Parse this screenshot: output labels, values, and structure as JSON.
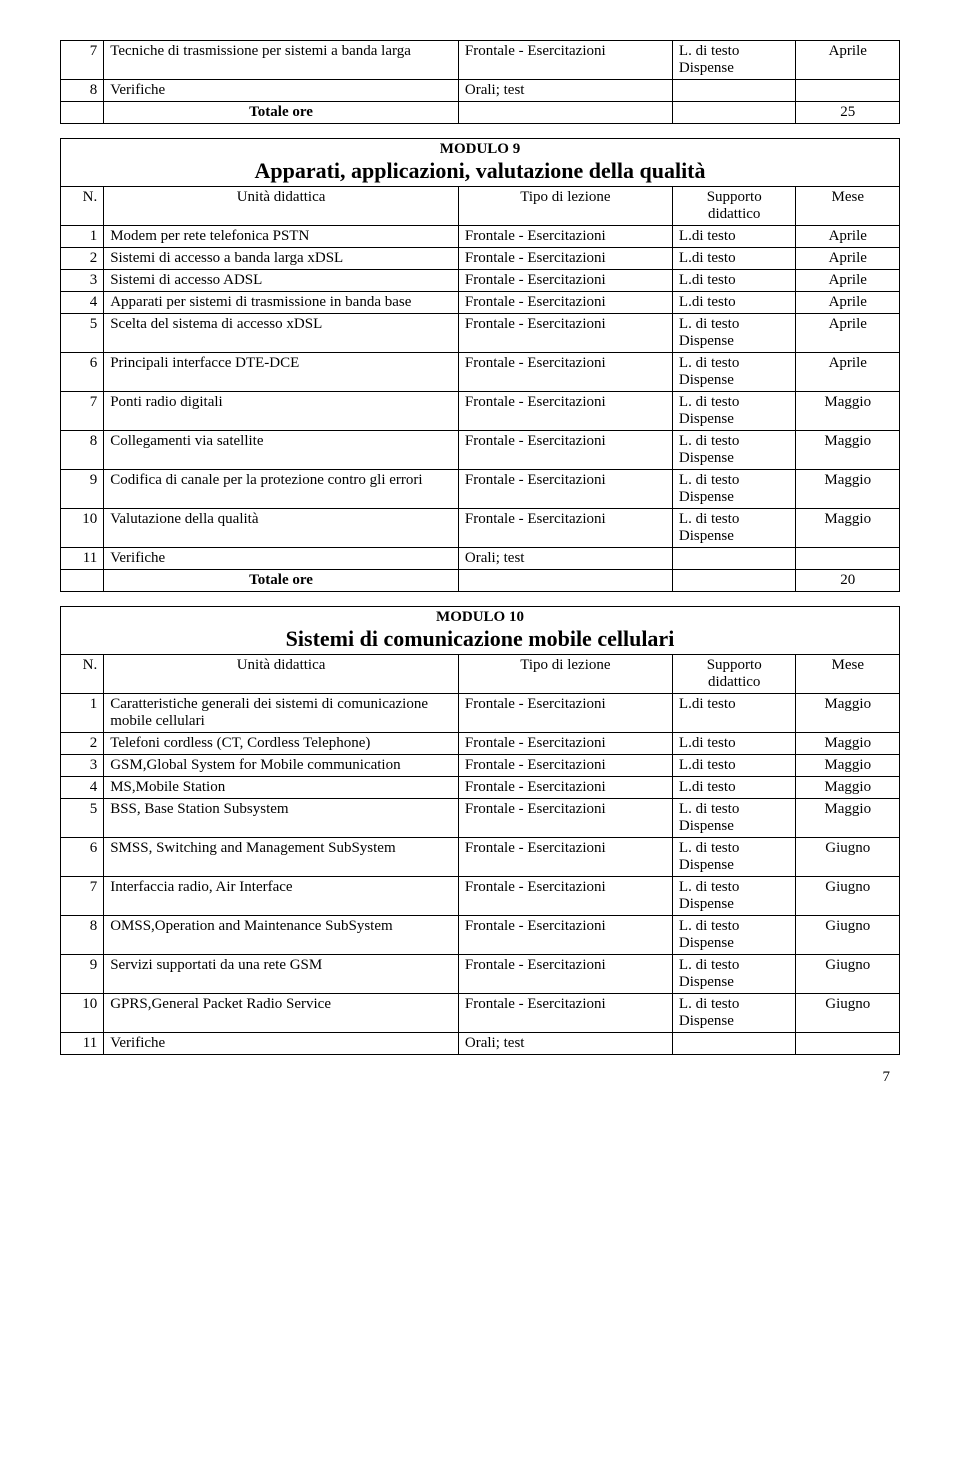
{
  "colors": {
    "background": "#ffffff",
    "text": "#000000",
    "border": "#000000"
  },
  "typography": {
    "font_family": "Times New Roman",
    "base_size_pt": 12,
    "subtitle_size_pt": 17
  },
  "page_number": "7",
  "labels": {
    "n": "N.",
    "unita": "Unità didattica",
    "tipo": "Tipo di lezione",
    "supporto": "Supporto didattico",
    "mese": "Mese",
    "totale": "Totale ore"
  },
  "top_table": {
    "rows": [
      {
        "n": "7",
        "unit": "Tecniche di trasmissione per sistemi a banda larga",
        "tipo": "Frontale - Esercitazioni",
        "supp": "L. di testo Dispense",
        "mese": "Aprile"
      },
      {
        "n": "8",
        "unit": "Verifiche",
        "tipo": "Orali; test",
        "supp": "",
        "mese": ""
      }
    ],
    "total_value": "25"
  },
  "module9": {
    "code": "MODULO 9",
    "title": "Apparati, applicazioni, valutazione della qualità",
    "rows": [
      {
        "n": "1",
        "unit": "Modem per rete telefonica PSTN",
        "tipo": "Frontale - Esercitazioni",
        "supp": "L.di testo",
        "mese": "Aprile"
      },
      {
        "n": "2",
        "unit": "Sistemi di accesso a banda larga xDSL",
        "tipo": "Frontale - Esercitazioni",
        "supp": "L.di testo",
        "mese": "Aprile"
      },
      {
        "n": "3",
        "unit": "Sistemi di accesso ADSL",
        "tipo": "Frontale - Esercitazioni",
        "supp": "L.di testo",
        "mese": "Aprile"
      },
      {
        "n": "4",
        "unit": "Apparati per sistemi di trasmissione in banda base",
        "tipo": "Frontale - Esercitazioni",
        "supp": "L.di testo",
        "mese": "Aprile"
      },
      {
        "n": "5",
        "unit": "Scelta del sistema di accesso xDSL",
        "tipo": "Frontale - Esercitazioni",
        "supp": "L. di testo Dispense",
        "mese": "Aprile"
      },
      {
        "n": "6",
        "unit": "Principali interfacce DTE-DCE",
        "tipo": "Frontale - Esercitazioni",
        "supp": "L. di testo Dispense",
        "mese": "Aprile"
      },
      {
        "n": "7",
        "unit": "Ponti radio digitali",
        "tipo": "Frontale - Esercitazioni",
        "supp": "L. di testo Dispense",
        "mese": "Maggio"
      },
      {
        "n": "8",
        "unit": "Collegamenti via satellite",
        "tipo": "Frontale - Esercitazioni",
        "supp": "L. di testo Dispense",
        "mese": "Maggio"
      },
      {
        "n": "9",
        "unit": "Codifica di canale per la protezione contro gli errori",
        "tipo": "Frontale - Esercitazioni",
        "supp": "L. di testo Dispense",
        "mese": "Maggio"
      },
      {
        "n": "10",
        "unit": "Valutazione della qualità",
        "tipo": "Frontale - Esercitazioni",
        "supp": "L. di testo Dispense",
        "mese": "Maggio"
      },
      {
        "n": "11",
        "unit": "Verifiche",
        "tipo": "Orali; test",
        "supp": "",
        "mese": ""
      }
    ],
    "total_value": "20"
  },
  "module10": {
    "code": "MODULO 10",
    "title": "Sistemi di comunicazione mobile cellulari",
    "rows": [
      {
        "n": "1",
        "unit": "Caratteristiche generali dei sistemi di comunicazione mobile cellulari",
        "tipo": "Frontale - Esercitazioni",
        "supp": "L.di testo",
        "mese": "Maggio"
      },
      {
        "n": "2",
        "unit": "Telefoni cordless (CT, Cordless Telephone)",
        "tipo": "Frontale - Esercitazioni",
        "supp": "L.di testo",
        "mese": "Maggio"
      },
      {
        "n": "3",
        "unit": "GSM,Global System for Mobile communication",
        "tipo": "Frontale - Esercitazioni",
        "supp": "L.di testo",
        "mese": "Maggio"
      },
      {
        "n": "4",
        "unit": "MS,Mobile Station",
        "tipo": "Frontale - Esercitazioni",
        "supp": "L.di testo",
        "mese": "Maggio"
      },
      {
        "n": "5",
        "unit": "BSS, Base Station Subsystem",
        "tipo": "Frontale - Esercitazioni",
        "supp": "L. di testo Dispense",
        "mese": "Maggio"
      },
      {
        "n": "6",
        "unit": "SMSS, Switching and Management SubSystem",
        "tipo": "Frontale - Esercitazioni",
        "supp": "L. di testo Dispense",
        "mese": "Giugno"
      },
      {
        "n": "7",
        "unit": "Interfaccia radio, Air Interface",
        "tipo": "Frontale - Esercitazioni",
        "supp": "L. di testo Dispense",
        "mese": "Giugno"
      },
      {
        "n": "8",
        "unit": "OMSS,Operation and Maintenance SubSystem",
        "tipo": "Frontale - Esercitazioni",
        "supp": "L. di testo Dispense",
        "mese": "Giugno"
      },
      {
        "n": "9",
        "unit": "Servizi supportati da una rete GSM",
        "tipo": "Frontale - Esercitazioni",
        "supp": "L. di testo Dispense",
        "mese": "Giugno"
      },
      {
        "n": "10",
        "unit": "GPRS,General Packet Radio Service",
        "tipo": "Frontale - Esercitazioni",
        "supp": "L. di testo Dispense",
        "mese": "Giugno"
      },
      {
        "n": "11",
        "unit": "Verifiche",
        "tipo": "Orali; test",
        "supp": "",
        "mese": ""
      }
    ]
  }
}
